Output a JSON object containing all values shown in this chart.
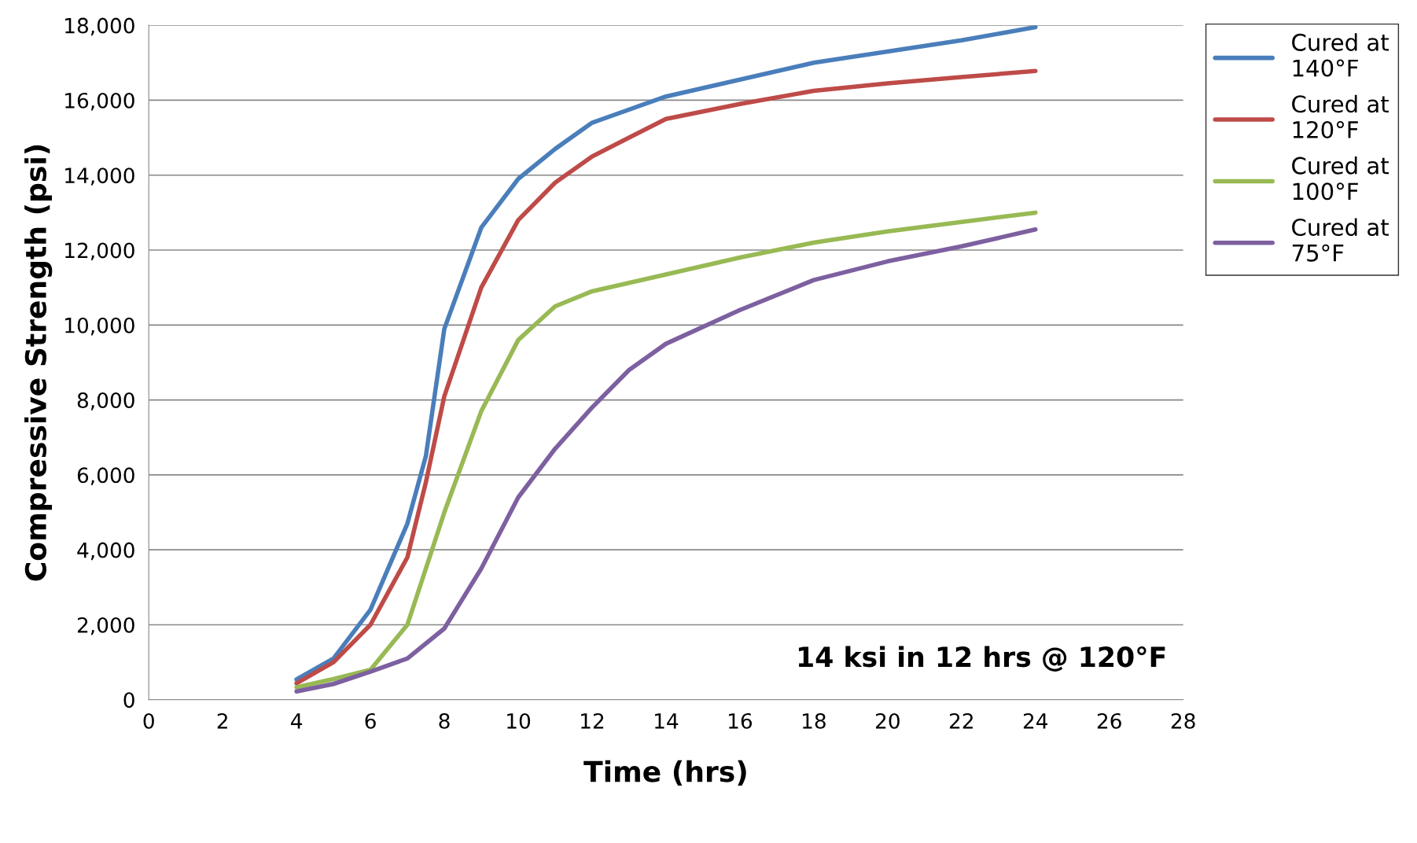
{
  "chart_data": {
    "type": "line",
    "xlabel": "Time (hrs)",
    "ylabel": "Compressive Strength (psi)",
    "xlim": [
      0,
      28
    ],
    "xticks": [
      0,
      2,
      4,
      6,
      8,
      10,
      12,
      14,
      16,
      18,
      20,
      22,
      24,
      26,
      28
    ],
    "ylim": [
      0,
      18000
    ],
    "yticks": [
      {
        "value": 0,
        "label": "0"
      },
      {
        "value": 2000,
        "label": "2,000"
      },
      {
        "value": 4000,
        "label": "4,000"
      },
      {
        "value": 6000,
        "label": "6,000"
      },
      {
        "value": 8000,
        "label": "8,000"
      },
      {
        "value": 10000,
        "label": "10,000"
      },
      {
        "value": 12000,
        "label": "12,000"
      },
      {
        "value": 14000,
        "label": "14,000"
      },
      {
        "value": 16000,
        "label": "16,000"
      },
      {
        "value": 18000,
        "label": "18,000"
      }
    ],
    "grid": "y",
    "legend": "top right",
    "marker": "none",
    "line_style": "solid",
    "annotations": [
      "14 ksi in 12 hrs @ 120°F"
    ],
    "series": [
      {
        "name": "Cured at 140°F",
        "color": "#4a7ebb",
        "x": [
          4,
          5,
          6,
          7,
          7.5,
          8,
          9,
          10,
          11,
          12,
          14,
          16,
          18,
          20,
          22,
          24
        ],
        "values": [
          540,
          1100,
          2400,
          4700,
          6500,
          9900,
          12600,
          13900,
          14700,
          15400,
          16100,
          16550,
          17000,
          17300,
          17600,
          17950
        ]
      },
      {
        "name": "Cured at 120°F",
        "color": "#be4b48",
        "x": [
          4,
          5,
          6,
          7,
          7.5,
          8,
          9,
          10,
          11,
          12,
          13,
          14,
          16,
          18,
          20,
          22,
          24
        ],
        "values": [
          440,
          1000,
          2000,
          3800,
          5800,
          8100,
          11000,
          12800,
          13800,
          14500,
          15000,
          15500,
          15900,
          16250,
          16450,
          16620,
          16780
        ]
      },
      {
        "name": "Cured at 100°F",
        "color": "#98b954",
        "x": [
          4,
          5,
          6,
          7,
          8,
          9,
          10,
          11,
          12,
          14,
          16,
          18,
          20,
          22,
          24
        ],
        "values": [
          330,
          550,
          800,
          2000,
          5000,
          7700,
          9600,
          10500,
          10900,
          11350,
          11800,
          12200,
          12500,
          12750,
          13000
        ]
      },
      {
        "name": "Cured at 75°F",
        "color": "#7d60a0",
        "x": [
          4,
          5,
          6,
          7,
          8,
          9,
          10,
          11,
          12,
          13,
          14,
          16,
          18,
          20,
          22,
          24
        ],
        "values": [
          220,
          420,
          750,
          1100,
          1900,
          3500,
          5400,
          6700,
          7800,
          8800,
          9500,
          10400,
          11200,
          11700,
          12100,
          12550
        ]
      }
    ]
  }
}
